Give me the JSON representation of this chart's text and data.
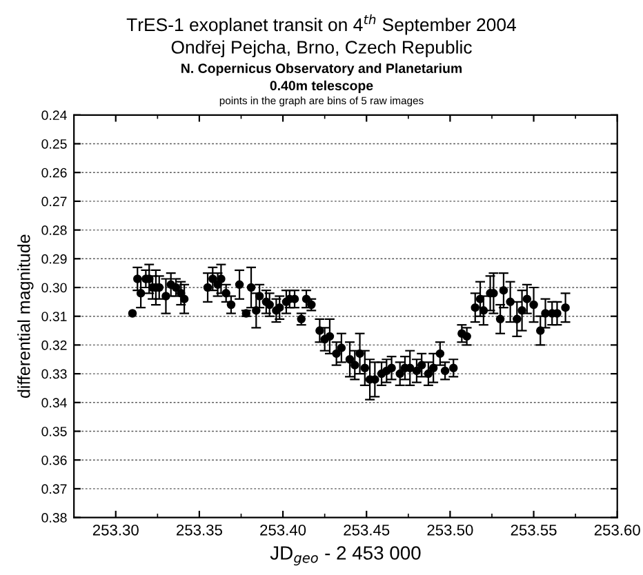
{
  "chart_data": {
    "type": "scatter",
    "title": "TrES-1 exoplanet transit on 4$^{th}$ September 2004",
    "subtitle": "Ondřej Pejcha, Brno, Czech Republic",
    "annotations": [
      "N. Copernicus Observatory and Planetarium",
      "0.40m telescope",
      "points in the graph are bins of 5 raw images"
    ],
    "xlabel": "JD$_{geo}$ - 2 453 000",
    "ylabel": "differential magnitude",
    "xlim": [
      253.275,
      253.6
    ],
    "xticks": [
      {
        "value": 253.3,
        "label": "253.30"
      },
      {
        "value": 253.35,
        "label": "253.35"
      },
      {
        "value": 253.4,
        "label": "253.40"
      },
      {
        "value": 253.45,
        "label": "253.45"
      },
      {
        "value": 253.5,
        "label": "253.50"
      },
      {
        "value": 253.55,
        "label": "253.55"
      },
      {
        "value": 253.6,
        "label": "253.60"
      }
    ],
    "ylim": [
      0.38,
      0.24
    ],
    "yticks": [
      {
        "value": 0.24,
        "label": "0.24"
      },
      {
        "value": 0.25,
        "label": "0.25"
      },
      {
        "value": 0.26,
        "label": "0.26"
      },
      {
        "value": 0.27,
        "label": "0.27"
      },
      {
        "value": 0.28,
        "label": "0.28"
      },
      {
        "value": 0.29,
        "label": "0.29"
      },
      {
        "value": 0.3,
        "label": "0.30"
      },
      {
        "value": 0.31,
        "label": "0.31"
      },
      {
        "value": 0.32,
        "label": "0.32"
      },
      {
        "value": 0.33,
        "label": "0.33"
      },
      {
        "value": 0.34,
        "label": "0.34"
      },
      {
        "value": 0.35,
        "label": "0.35"
      },
      {
        "value": 0.36,
        "label": "0.36"
      },
      {
        "value": 0.37,
        "label": "0.37"
      },
      {
        "value": 0.38,
        "label": "0.38"
      }
    ],
    "grid": "y",
    "marker": "circle",
    "series": [
      {
        "color": "#000000",
        "x": [
          253.31,
          253.313,
          253.315,
          253.318,
          253.32,
          253.322,
          253.324,
          253.326,
          253.33,
          253.333,
          253.336,
          253.339,
          253.341,
          253.355,
          253.358,
          253.361,
          253.363,
          253.366,
          253.369,
          253.374,
          253.378,
          253.381,
          253.384,
          253.386,
          253.39,
          253.392,
          253.396,
          253.398,
          253.402,
          253.404,
          253.407,
          253.411,
          253.414,
          253.417,
          253.422,
          253.425,
          253.428,
          253.432,
          253.435,
          253.44,
          253.443,
          253.446,
          253.449,
          253.452,
          253.455,
          253.459,
          253.462,
          253.465,
          253.47,
          253.473,
          253.476,
          253.48,
          253.483,
          253.487,
          253.49,
          253.494,
          253.497,
          253.502,
          253.507,
          253.51,
          253.515,
          253.518,
          253.52,
          253.524,
          253.526,
          253.53,
          253.532,
          253.536,
          253.54,
          253.543,
          253.546,
          253.55,
          253.554,
          253.557,
          253.561,
          253.564,
          253.569
        ],
        "values": [
          0.309,
          0.297,
          0.302,
          0.297,
          0.297,
          0.3,
          0.3,
          0.3,
          0.303,
          0.299,
          0.3,
          0.302,
          0.304,
          0.3,
          0.297,
          0.299,
          0.297,
          0.302,
          0.306,
          0.299,
          0.309,
          0.3,
          0.308,
          0.303,
          0.305,
          0.306,
          0.308,
          0.307,
          0.305,
          0.304,
          0.304,
          0.311,
          0.304,
          0.306,
          0.315,
          0.318,
          0.317,
          0.323,
          0.321,
          0.325,
          0.327,
          0.323,
          0.328,
          0.332,
          0.332,
          0.33,
          0.329,
          0.328,
          0.33,
          0.328,
          0.328,
          0.329,
          0.327,
          0.33,
          0.328,
          0.323,
          0.329,
          0.328,
          0.316,
          0.317,
          0.307,
          0.304,
          0.308,
          0.302,
          0.302,
          0.311,
          0.301,
          0.305,
          0.311,
          0.308,
          0.304,
          0.306,
          0.315,
          0.309,
          0.309,
          0.309,
          0.307
        ],
        "errors": [
          null,
          0.004,
          0.005,
          0.003,
          0.005,
          0.004,
          0.006,
          0.004,
          0.006,
          0.004,
          0.003,
          0.004,
          0.005,
          0.005,
          0.004,
          0.004,
          0.005,
          0.003,
          0.003,
          0.005,
          0.001,
          0.007,
          0.006,
          0.004,
          0.004,
          0.004,
          0.004,
          0.004,
          0.004,
          0.003,
          0.003,
          0.002,
          0.003,
          0.002,
          0.004,
          0.004,
          0.006,
          0.004,
          0.005,
          0.006,
          0.005,
          0.007,
          0.006,
          0.007,
          0.006,
          0.004,
          0.004,
          0.004,
          0.004,
          0.004,
          0.006,
          0.004,
          0.004,
          0.004,
          0.005,
          0.004,
          0.003,
          0.003,
          0.003,
          0.003,
          0.005,
          0.006,
          0.005,
          0.006,
          0.007,
          0.005,
          0.006,
          0.007,
          0.006,
          0.007,
          0.005,
          0.006,
          0.005,
          0.005,
          0.004,
          0.004,
          0.005
        ]
      }
    ]
  }
}
